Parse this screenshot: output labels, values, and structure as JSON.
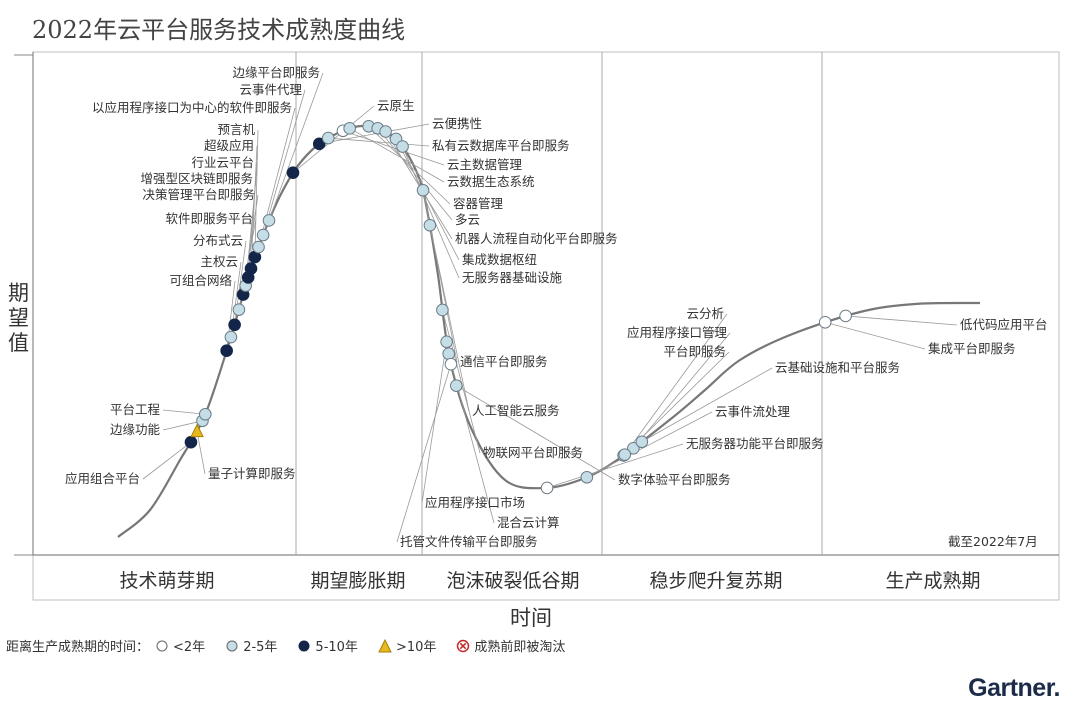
{
  "title": "2022年云平台服务技术成熟度曲线",
  "chart_data": {
    "type": "scatter",
    "title": "2022年云平台服务技术成熟度曲线",
    "xlabel": "时间",
    "ylabel": "期望值",
    "date_note": "截至2022年7月",
    "phases": [
      "技术萌芽期",
      "期望膨胀期",
      "泡沫破裂低谷期",
      "稳步爬升复苏期",
      "生产成熟期"
    ],
    "categories": [
      {
        "key": "lt2",
        "label": "<2年",
        "color": "#ffffff"
      },
      {
        "key": "2to5",
        "label": "2-5年",
        "color": "#c5dde6"
      },
      {
        "key": "5to10",
        "label": "5-10年",
        "color": "#13264a"
      },
      {
        "key": "gt10",
        "label": ">10年",
        "color": "#e8b820"
      },
      {
        "key": "obsolete",
        "label": "成熟前即被淘汰",
        "color": "#c62828"
      }
    ],
    "points": [
      {
        "name": "应用组合平台",
        "t": 0.17,
        "cat": "5to10"
      },
      {
        "name": "量子计算即服务",
        "t": 0.187,
        "cat": "gt10"
      },
      {
        "name": "边缘功能",
        "t": 0.204,
        "cat": "2to5"
      },
      {
        "name": "平台工程",
        "t": 0.214,
        "cat": "2to5"
      },
      {
        "name": "可组合网络",
        "t": 0.308,
        "cat": "5to10"
      },
      {
        "name": "主权云",
        "t": 0.328,
        "cat": "2to5"
      },
      {
        "name": "分布式云",
        "t": 0.346,
        "cat": "5to10"
      },
      {
        "name": "软件即服务平台",
        "t": 0.368,
        "cat": "2to5"
      },
      {
        "name": "决策管理平台即服务",
        "t": 0.39,
        "cat": "5to10"
      },
      {
        "name": "增强型区块链即服务",
        "t": 0.403,
        "cat": "2to5"
      },
      {
        "name": "行业云平台",
        "t": 0.415,
        "cat": "5to10"
      },
      {
        "name": "超级应用",
        "t": 0.428,
        "cat": "5to10"
      },
      {
        "name": "预言机",
        "t": 0.445,
        "cat": "5to10"
      },
      {
        "name": "以应用程序接口为中心的软件即服务",
        "t": 0.46,
        "cat": "2to5"
      },
      {
        "name": "云事件代理",
        "t": 0.478,
        "cat": "2to5"
      },
      {
        "name": "边缘平台即服务",
        "t": 0.5,
        "cat": "2to5"
      },
      {
        "name": "云原生",
        "t": 0.575,
        "cat": "5to10"
      },
      {
        "name": "云便携性",
        "t": 0.63,
        "cat": "5to10"
      },
      {
        "name": "私有云数据库平台即服务",
        "t": 0.645,
        "cat": "2to5"
      },
      {
        "name": "云主数据管理",
        "t": 0.668,
        "cat": "lt2"
      },
      {
        "name": "云数据生态系统",
        "t": 0.678,
        "cat": "2to5"
      },
      {
        "name": "容器管理",
        "t": 0.705,
        "cat": "2to5"
      },
      {
        "name": "多云",
        "t": 0.718,
        "cat": "2to5"
      },
      {
        "name": "机器人流程自动化平台即服务",
        "t": 0.73,
        "cat": "2to5"
      },
      {
        "name": "集成数据枢纽",
        "t": 0.748,
        "cat": "2to5"
      },
      {
        "name": "无服务器基础设施",
        "t": 0.762,
        "cat": "2to5"
      },
      {
        "name": "通信平台即服务",
        "t": 0.83,
        "cat": "2to5"
      },
      {
        "name": "人工智能云服务",
        "t": 0.88,
        "cat": "2to5"
      },
      {
        "name": "物联网平台即服务",
        "t": 1.0,
        "cat": "2to5"
      },
      {
        "name": "应用程序接口市场",
        "t": 1.045,
        "cat": "2to5"
      },
      {
        "name": "混合云计算",
        "t": 1.062,
        "cat": "2to5"
      },
      {
        "name": "托管文件传输平台即服务",
        "t": 1.077,
        "cat": "lt2"
      },
      {
        "name": "数字体验平台即服务",
        "t": 1.108,
        "cat": "2to5"
      },
      {
        "name": "无服务器功能平台即服务",
        "t": 1.32,
        "cat": "lt2"
      },
      {
        "name": "云事件流处理",
        "t": 1.378,
        "cat": "2to5"
      },
      {
        "name": "平台即服务",
        "t": 1.438,
        "cat": "2to5"
      },
      {
        "name": "应用程序接口管理",
        "t": 1.455,
        "cat": "2to5"
      },
      {
        "name": "云基础设施和平台服务",
        "t": 1.47,
        "cat": "2to5"
      },
      {
        "name": "云分析",
        "t": 1.44,
        "cat": "2to5"
      },
      {
        "name": "集成平台即服务",
        "t": 1.78,
        "cat": "lt2"
      },
      {
        "name": "低代码应用平台",
        "t": 1.81,
        "cat": "lt2"
      }
    ]
  },
  "legend": {
    "prefix": "距离生产成熟期的时间：",
    "items": [
      "<2年",
      "2-5年",
      "5-10年",
      ">10年",
      "成熟前即被淘汰"
    ]
  },
  "brand": "Gartner."
}
